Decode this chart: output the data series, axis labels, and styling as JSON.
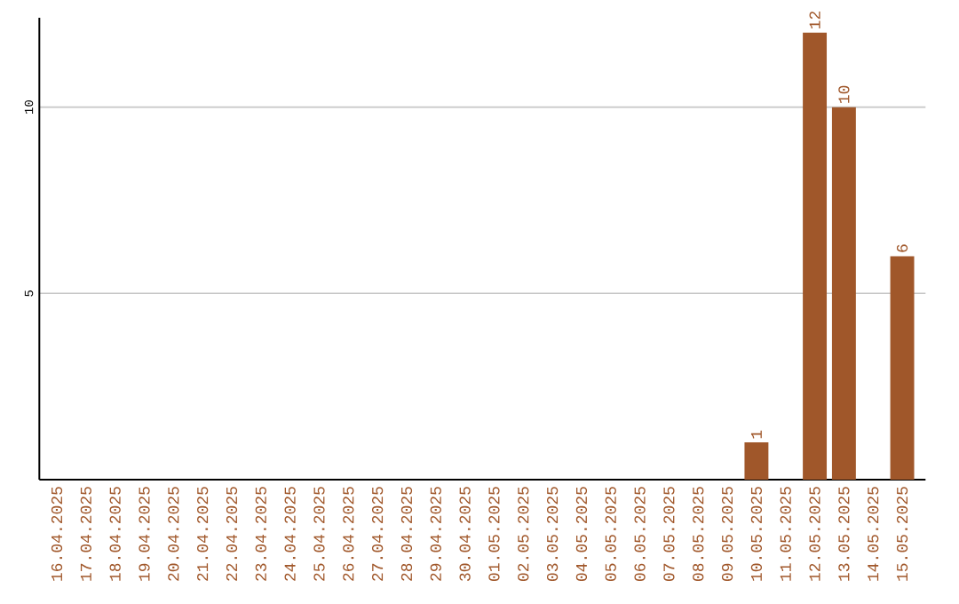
{
  "chart_data": {
    "type": "bar",
    "categories": [
      "16.04.2025",
      "17.04.2025",
      "18.04.2025",
      "19.04.2025",
      "20.04.2025",
      "21.04.2025",
      "22.04.2025",
      "23.04.2025",
      "24.04.2025",
      "25.04.2025",
      "26.04.2025",
      "27.04.2025",
      "28.04.2025",
      "29.04.2025",
      "30.04.2025",
      "01.05.2025",
      "02.05.2025",
      "03.05.2025",
      "04.05.2025",
      "05.05.2025",
      "06.05.2025",
      "07.05.2025",
      "08.05.2025",
      "09.05.2025",
      "10.05.2025",
      "11.05.2025",
      "12.05.2025",
      "13.05.2025",
      "14.05.2025",
      "15.05.2025"
    ],
    "values": [
      0,
      0,
      0,
      0,
      0,
      0,
      0,
      0,
      0,
      0,
      0,
      0,
      0,
      0,
      0,
      0,
      0,
      0,
      0,
      0,
      0,
      0,
      0,
      0,
      1,
      0,
      12,
      10,
      0,
      6
    ],
    "value_labels": [
      null,
      null,
      null,
      null,
      null,
      null,
      null,
      null,
      null,
      null,
      null,
      null,
      null,
      null,
      null,
      null,
      null,
      null,
      null,
      null,
      null,
      null,
      null,
      null,
      "1",
      null,
      "12",
      "10",
      null,
      "6"
    ],
    "color": "#a0572a",
    "ylim": [
      0,
      12.4
    ],
    "yticks": [
      5,
      10
    ],
    "grid": "y"
  }
}
